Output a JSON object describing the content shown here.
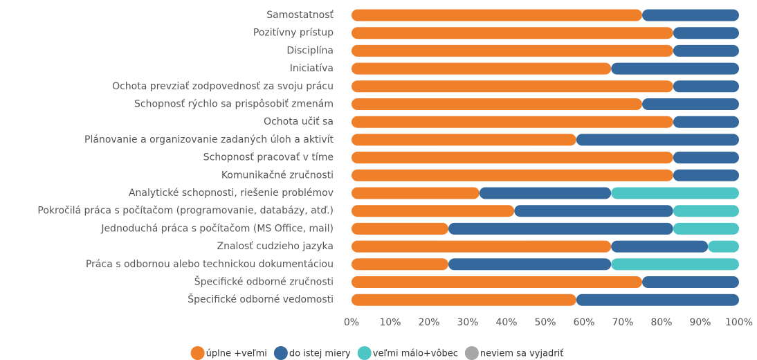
{
  "chart_data": {
    "type": "stacked_bar_horizontal",
    "categories": [
      "Samostatnosť",
      "Pozitívny prístup",
      "Disciplína",
      "Iniciatíva",
      "Ochota prevziať zodpovednosť za svoju prácu",
      "Schopnosť rýchlo sa prispôsobiť zmenám",
      "Ochota učiť sa",
      "Plánovanie a organizovanie zadaných úloh a aktivít",
      "Schopnosť pracovať v tíme",
      "Komunikačné zručnosti",
      "Analytické schopnosti, riešenie problémov",
      "Pokročilá práca s počítačom (programovanie, databázy, atď.)",
      "Jednoduchá práca s počítačom (MS Office, mail)",
      "Znalosť cudzieho jazyka",
      "Práca s odbornou alebo technickou dokumentáciou",
      "Špecifické odborné zručnosti",
      "Špecifické odborné vedomosti"
    ],
    "series": [
      {
        "name": "úplne +veľmi",
        "color": "#f07f2a",
        "values": [
          75,
          83,
          83,
          67,
          83,
          75,
          83,
          58,
          83,
          83,
          33,
          42,
          25,
          67,
          25,
          75,
          58
        ]
      },
      {
        "name": "do istej miery",
        "color": "#35689c",
        "values": [
          25,
          17,
          17,
          33,
          17,
          25,
          17,
          42,
          17,
          17,
          34,
          41,
          58,
          25,
          42,
          25,
          42
        ]
      },
      {
        "name": "veľmi málo+vôbec",
        "color": "#4ec5c5",
        "values": [
          0,
          0,
          0,
          0,
          0,
          0,
          0,
          0,
          0,
          0,
          33,
          17,
          17,
          8,
          33,
          0,
          0
        ]
      },
      {
        "name": "neviem sa vyjadriť",
        "color": "#a6a6a6",
        "values": [
          0,
          0,
          0,
          0,
          0,
          0,
          0,
          0,
          0,
          0,
          0,
          0,
          0,
          0,
          0,
          0,
          0
        ]
      }
    ],
    "xlim": [
      0,
      100
    ],
    "xticks": [
      {
        "value": 0,
        "label": "0%"
      },
      {
        "value": 10,
        "label": "10%"
      },
      {
        "value": 20,
        "label": "20%"
      },
      {
        "value": 30,
        "label": "30%"
      },
      {
        "value": 40,
        "label": "40%"
      },
      {
        "value": 50,
        "label": "50%"
      },
      {
        "value": 60,
        "label": "60%"
      },
      {
        "value": 70,
        "label": "70%"
      },
      {
        "value": 80,
        "label": "80%"
      },
      {
        "value": 90,
        "label": "90%"
      },
      {
        "value": 100,
        "label": "100%"
      }
    ],
    "legend": "bottom"
  }
}
